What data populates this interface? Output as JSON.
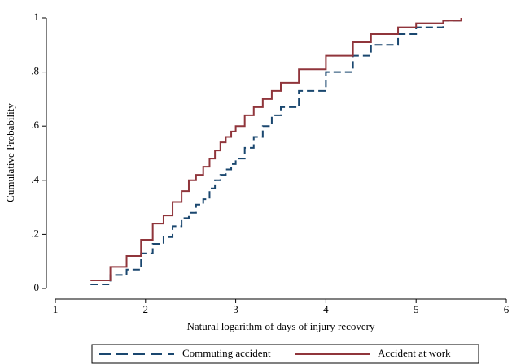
{
  "chart_data": {
    "type": "step",
    "x_label": "Natural logarithm of days of injury recovery",
    "y_label": "Cumulative Probability",
    "xlim": [
      1,
      6
    ],
    "xticks": [
      1,
      2,
      3,
      4,
      5,
      6
    ],
    "ylim": [
      0,
      1
    ],
    "yticks": [
      0,
      {
        "value": 0.2,
        "label": ".2"
      },
      {
        "value": 0.4,
        "label": ".4"
      },
      {
        "value": 0.6,
        "label": ".6"
      },
      {
        "value": 0.8,
        "label": ".8"
      },
      1
    ],
    "legend": "bottom",
    "series": [
      {
        "name": "Commuting accident",
        "color": "#1a476f",
        "dash": true,
        "x": [
          1.39,
          1.61,
          1.79,
          1.95,
          2.08,
          2.2,
          2.3,
          2.4,
          2.48,
          2.56,
          2.64,
          2.71,
          2.77,
          2.83,
          2.89,
          2.95,
          3.0,
          3.1,
          3.2,
          3.3,
          3.4,
          3.5,
          3.7,
          4.0,
          4.3,
          4.5,
          4.8,
          5.0,
          5.3,
          5.5
        ],
        "values": [
          0.015,
          0.05,
          0.07,
          0.13,
          0.165,
          0.19,
          0.23,
          0.26,
          0.28,
          0.31,
          0.33,
          0.37,
          0.4,
          0.42,
          0.44,
          0.46,
          0.48,
          0.52,
          0.56,
          0.6,
          0.64,
          0.67,
          0.73,
          0.8,
          0.86,
          0.9,
          0.94,
          0.965,
          0.99,
          1.0
        ]
      },
      {
        "name": "Accident at work",
        "color": "#90353b",
        "dash": false,
        "x": [
          1.39,
          1.61,
          1.79,
          1.95,
          2.08,
          2.2,
          2.3,
          2.4,
          2.48,
          2.56,
          2.64,
          2.71,
          2.77,
          2.83,
          2.89,
          2.95,
          3.0,
          3.1,
          3.2,
          3.3,
          3.4,
          3.5,
          3.7,
          4.0,
          4.3,
          4.5,
          4.8,
          5.0,
          5.3,
          5.5
        ],
        "values": [
          0.03,
          0.08,
          0.12,
          0.18,
          0.24,
          0.27,
          0.32,
          0.36,
          0.4,
          0.42,
          0.45,
          0.48,
          0.51,
          0.54,
          0.56,
          0.58,
          0.6,
          0.64,
          0.67,
          0.7,
          0.73,
          0.76,
          0.81,
          0.86,
          0.91,
          0.94,
          0.965,
          0.98,
          0.99,
          1.0
        ]
      }
    ]
  }
}
